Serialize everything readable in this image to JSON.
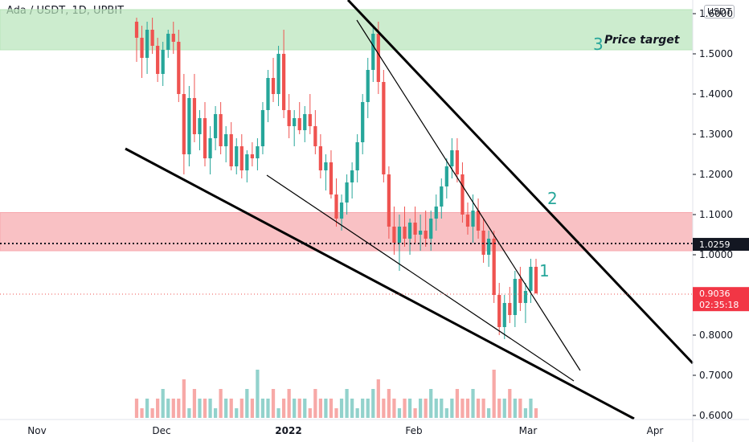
{
  "header": {
    "title": "Ada / USDT, 1D, UPBIT",
    "unit_label": "USDT"
  },
  "chart_data": {
    "type": "candlestick",
    "y_axis": {
      "min": 0.6,
      "max": 1.6,
      "ticks": [
        "0.6000",
        "0.7000",
        "0.8000",
        "0.9000",
        "1.0000",
        "1.1000",
        "1.2000",
        "1.3000",
        "1.4000",
        "1.5000",
        "1.6000"
      ]
    },
    "x_axis": {
      "labels": [
        "Nov",
        "Dec",
        "2022",
        "Feb",
        "Mar",
        "Apr"
      ]
    },
    "price_labels": [
      {
        "name": "level",
        "value": "1.0259",
        "color": "#131722"
      },
      {
        "name": "last",
        "value": "0.9036",
        "subtext": "02:35:18",
        "color": "#f23645"
      }
    ],
    "zones": [
      {
        "name": "price-target-zone",
        "from": 1.51,
        "to": 1.61,
        "color": "#b7e4b9"
      },
      {
        "name": "resistance-zone",
        "from": 1.01,
        "to": 1.105,
        "color": "#f7a6ab"
      }
    ],
    "annotations": [
      {
        "name": "label-1",
        "text": "1"
      },
      {
        "name": "label-2",
        "text": "2"
      },
      {
        "name": "label-3",
        "text": "3"
      },
      {
        "name": "price-target-text",
        "text": "Price target"
      }
    ],
    "colors": {
      "up": "#26a69a",
      "down": "#ef5350"
    },
    "candles": [
      [
        1.58,
        1.59,
        1.48,
        1.54
      ],
      [
        1.54,
        1.57,
        1.44,
        1.49
      ],
      [
        1.49,
        1.58,
        1.45,
        1.56
      ],
      [
        1.56,
        1.59,
        1.5,
        1.52
      ],
      [
        1.52,
        1.54,
        1.43,
        1.45
      ],
      [
        1.45,
        1.53,
        1.42,
        1.51
      ],
      [
        1.51,
        1.56,
        1.49,
        1.55
      ],
      [
        1.55,
        1.58,
        1.5,
        1.53
      ],
      [
        1.53,
        1.56,
        1.38,
        1.4
      ],
      [
        1.4,
        1.45,
        1.2,
        1.25
      ],
      [
        1.25,
        1.42,
        1.22,
        1.39
      ],
      [
        1.39,
        1.45,
        1.28,
        1.3
      ],
      [
        1.3,
        1.36,
        1.26,
        1.34
      ],
      [
        1.34,
        1.38,
        1.22,
        1.24
      ],
      [
        1.24,
        1.32,
        1.2,
        1.29
      ],
      [
        1.29,
        1.37,
        1.26,
        1.35
      ],
      [
        1.35,
        1.38,
        1.25,
        1.27
      ],
      [
        1.27,
        1.32,
        1.23,
        1.3
      ],
      [
        1.3,
        1.33,
        1.21,
        1.22
      ],
      [
        1.22,
        1.29,
        1.2,
        1.27
      ],
      [
        1.27,
        1.3,
        1.19,
        1.21
      ],
      [
        1.21,
        1.26,
        1.18,
        1.25
      ],
      [
        1.25,
        1.28,
        1.22,
        1.24
      ],
      [
        1.24,
        1.29,
        1.21,
        1.27
      ],
      [
        1.27,
        1.38,
        1.25,
        1.36
      ],
      [
        1.36,
        1.46,
        1.33,
        1.44
      ],
      [
        1.44,
        1.49,
        1.38,
        1.4
      ],
      [
        1.4,
        1.52,
        1.37,
        1.5
      ],
      [
        1.5,
        1.56,
        1.34,
        1.36
      ],
      [
        1.36,
        1.4,
        1.29,
        1.32
      ],
      [
        1.32,
        1.36,
        1.27,
        1.34
      ],
      [
        1.34,
        1.38,
        1.3,
        1.31
      ],
      [
        1.31,
        1.37,
        1.28,
        1.35
      ],
      [
        1.35,
        1.4,
        1.3,
        1.32
      ],
      [
        1.32,
        1.36,
        1.25,
        1.27
      ],
      [
        1.27,
        1.3,
        1.19,
        1.21
      ],
      [
        1.21,
        1.25,
        1.16,
        1.23
      ],
      [
        1.23,
        1.26,
        1.14,
        1.15
      ],
      [
        1.15,
        1.19,
        1.07,
        1.09
      ],
      [
        1.09,
        1.15,
        1.06,
        1.13
      ],
      [
        1.13,
        1.2,
        1.1,
        1.18
      ],
      [
        1.18,
        1.23,
        1.14,
        1.21
      ],
      [
        1.21,
        1.3,
        1.18,
        1.28
      ],
      [
        1.28,
        1.4,
        1.25,
        1.38
      ],
      [
        1.38,
        1.49,
        1.34,
        1.46
      ],
      [
        1.46,
        1.57,
        1.43,
        1.55
      ],
      [
        1.55,
        1.58,
        1.4,
        1.43
      ],
      [
        1.43,
        1.46,
        1.18,
        1.2
      ],
      [
        1.2,
        1.22,
        1.04,
        1.07
      ],
      [
        1.07,
        1.12,
        1.0,
        1.03
      ],
      [
        1.03,
        1.1,
        0.96,
        1.07
      ],
      [
        1.07,
        1.12,
        1.02,
        1.04
      ],
      [
        1.04,
        1.09,
        1.0,
        1.08
      ],
      [
        1.08,
        1.12,
        1.03,
        1.05
      ],
      [
        1.05,
        1.1,
        1.01,
        1.06
      ],
      [
        1.06,
        1.11,
        1.02,
        1.04
      ],
      [
        1.04,
        1.11,
        1.01,
        1.09
      ],
      [
        1.09,
        1.15,
        1.06,
        1.12
      ],
      [
        1.12,
        1.19,
        1.09,
        1.17
      ],
      [
        1.17,
        1.24,
        1.14,
        1.22
      ],
      [
        1.22,
        1.29,
        1.19,
        1.26
      ],
      [
        1.26,
        1.29,
        1.18,
        1.2
      ],
      [
        1.2,
        1.23,
        1.08,
        1.1
      ],
      [
        1.1,
        1.13,
        1.05,
        1.07
      ],
      [
        1.07,
        1.15,
        1.03,
        1.11
      ],
      [
        1.11,
        1.14,
        1.04,
        1.06
      ],
      [
        1.06,
        1.09,
        0.98,
        1.0
      ],
      [
        1.0,
        1.06,
        0.97,
        1.04
      ],
      [
        1.04,
        1.06,
        0.88,
        0.9
      ],
      [
        0.9,
        0.93,
        0.8,
        0.82
      ],
      [
        0.82,
        0.9,
        0.79,
        0.88
      ],
      [
        0.88,
        0.92,
        0.83,
        0.85
      ],
      [
        0.85,
        0.96,
        0.82,
        0.94
      ],
      [
        0.94,
        0.97,
        0.86,
        0.88
      ],
      [
        0.88,
        0.93,
        0.83,
        0.91
      ],
      [
        0.91,
        0.99,
        0.88,
        0.97
      ],
      [
        0.97,
        0.99,
        0.91,
        0.9036
      ]
    ],
    "volume": [
      0.02,
      0.01,
      0.02,
      0.01,
      0.02,
      0.03,
      0.02,
      0.02,
      0.02,
      0.04,
      0.01,
      0.03,
      0.02,
      0.02,
      0.02,
      0.01,
      0.03,
      0.02,
      0.02,
      0.01,
      0.02,
      0.03,
      0.02,
      0.05,
      0.02,
      0.02,
      0.03,
      0.01,
      0.02,
      0.03,
      0.02,
      0.02,
      0.02,
      0.01,
      0.03,
      0.02,
      0.02,
      0.02,
      0.01,
      0.02,
      0.03,
      0.02,
      0.01,
      0.02,
      0.02,
      0.03,
      0.04,
      0.02,
      0.03,
      0.02,
      0.01,
      0.02,
      0.02,
      0.01,
      0.02,
      0.02,
      0.03,
      0.02,
      0.02,
      0.01,
      0.02,
      0.03,
      0.02,
      0.02,
      0.03,
      0.02,
      0.02,
      0.01,
      0.05,
      0.02,
      0.02,
      0.03,
      0.02,
      0.02,
      0.01,
      0.02,
      0.01
    ]
  }
}
